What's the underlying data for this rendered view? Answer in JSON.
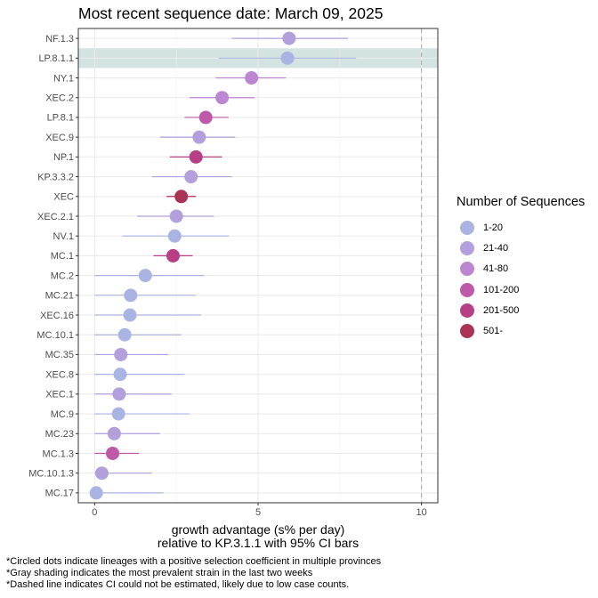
{
  "chart_data": {
    "type": "scatter",
    "title": "Most recent sequence date: March 09, 2025",
    "xlabel_line1": "growth advantage (s% per day)",
    "xlabel_line2": "relative to  KP.3.1.1  with 95% CI bars",
    "xlim": [
      -0.5,
      10.5
    ],
    "xticks": [
      "0",
      "5",
      "10"
    ],
    "xtick_values": [
      0,
      5,
      10
    ],
    "dashed_line_x": 10,
    "grid": true,
    "legend_position": "right",
    "legend_title": "Number of Sequences",
    "legend": [
      {
        "label": "1-20",
        "color": "#AAB4E2"
      },
      {
        "label": "21-40",
        "color": "#B29FDB"
      },
      {
        "label": "41-80",
        "color": "#BC86D0"
      },
      {
        "label": "101-200",
        "color": "#BE58A8"
      },
      {
        "label": "201-500",
        "color": "#B63F86"
      },
      {
        "label": "501-",
        "color": "#A93255"
      }
    ],
    "highlighted_lineage": "LP.8.1.1",
    "highlight_color": "#D3E3E1",
    "points": [
      {
        "lineage": "NF.1.3",
        "x": 5.95,
        "lo": 4.2,
        "hi": 7.75,
        "group": 1
      },
      {
        "lineage": "LP.8.1.1",
        "x": 5.9,
        "lo": 3.8,
        "hi": 8.0,
        "group": 0
      },
      {
        "lineage": "NY.1",
        "x": 4.8,
        "lo": 3.7,
        "hi": 5.85,
        "group": 2
      },
      {
        "lineage": "XEC.2",
        "x": 3.9,
        "lo": 2.9,
        "hi": 4.9,
        "group": 2
      },
      {
        "lineage": "LP.8.1",
        "x": 3.4,
        "lo": 2.75,
        "hi": 4.1,
        "group": 3
      },
      {
        "lineage": "XEC.9",
        "x": 3.2,
        "lo": 2.0,
        "hi": 4.3,
        "group": 1
      },
      {
        "lineage": "NP.1",
        "x": 3.1,
        "lo": 2.3,
        "hi": 3.9,
        "group": 4
      },
      {
        "lineage": "KP.3.3.2",
        "x": 2.95,
        "lo": 1.75,
        "hi": 4.2,
        "group": 1
      },
      {
        "lineage": "XEC",
        "x": 2.65,
        "lo": 2.2,
        "hi": 3.1,
        "group": 5
      },
      {
        "lineage": "XEC.2.1",
        "x": 2.5,
        "lo": 1.3,
        "hi": 3.65,
        "group": 1
      },
      {
        "lineage": "NV.1",
        "x": 2.45,
        "lo": 0.85,
        "hi": 4.1,
        "group": 0
      },
      {
        "lineage": "MC.1",
        "x": 2.4,
        "lo": 1.8,
        "hi": 3.0,
        "group": 4
      },
      {
        "lineage": "MC.2",
        "x": 1.55,
        "lo": 0.0,
        "hi": 3.35,
        "group": 0
      },
      {
        "lineage": "MC.21",
        "x": 1.1,
        "lo": 0.0,
        "hi": 3.1,
        "group": 0
      },
      {
        "lineage": "XEC.16",
        "x": 1.08,
        "lo": 0.0,
        "hi": 3.25,
        "group": 0
      },
      {
        "lineage": "MC.10.1",
        "x": 0.92,
        "lo": 0.0,
        "hi": 2.65,
        "group": 0
      },
      {
        "lineage": "MC.35",
        "x": 0.8,
        "lo": 0.0,
        "hi": 2.25,
        "group": 1
      },
      {
        "lineage": "XEC.8",
        "x": 0.78,
        "lo": 0.0,
        "hi": 2.75,
        "group": 0
      },
      {
        "lineage": "XEC.1",
        "x": 0.75,
        "lo": 0.0,
        "hi": 2.35,
        "group": 1
      },
      {
        "lineage": "MC.9",
        "x": 0.73,
        "lo": 0.0,
        "hi": 2.9,
        "group": 0
      },
      {
        "lineage": "MC.23",
        "x": 0.6,
        "lo": 0.0,
        "hi": 2.0,
        "group": 1
      },
      {
        "lineage": "MC.1.3",
        "x": 0.55,
        "lo": 0.0,
        "hi": 1.35,
        "group": 3
      },
      {
        "lineage": "MC.10.1.3",
        "x": 0.22,
        "lo": 0.0,
        "hi": 1.75,
        "group": 1
      },
      {
        "lineage": "MC.17",
        "x": 0.05,
        "lo": 0.0,
        "hi": 2.1,
        "group": 0
      }
    ]
  },
  "footnotes": [
    "*Circled dots indicate lineages with a positive selection coefficient in multiple provinces",
    "*Gray shading indicates the most prevalent strain in the last two weeks",
    "*Dashed line indicates CI could not be estimated, likely due to low case counts."
  ]
}
